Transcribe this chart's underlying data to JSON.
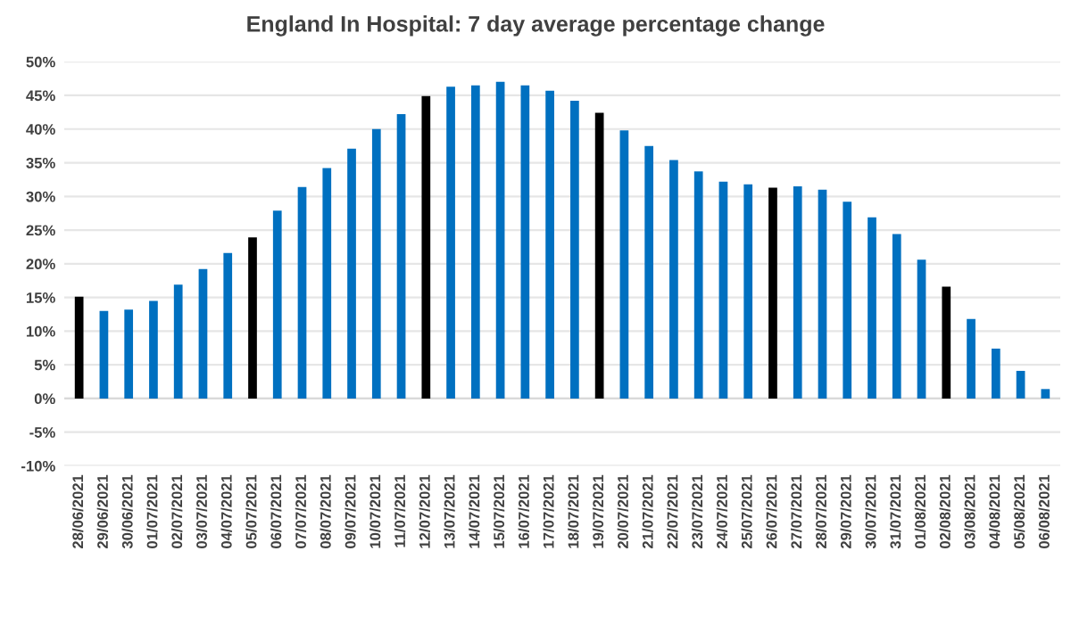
{
  "chart_data": {
    "type": "bar",
    "title": "England In Hospital: 7 day average percentage change",
    "categories": [
      "28/06/2021",
      "29/06/2021",
      "30/06/2021",
      "01/07/2021",
      "02/07/2021",
      "03/07/2021",
      "04/07/2021",
      "05/07/2021",
      "06/07/2021",
      "07/07/2021",
      "08/07/2021",
      "09/07/2021",
      "10/07/2021",
      "11/07/2021",
      "12/07/2021",
      "13/07/2021",
      "14/07/2021",
      "15/07/2021",
      "16/07/2021",
      "17/07/2021",
      "18/07/2021",
      "19/07/2021",
      "20/07/2021",
      "21/07/2021",
      "22/07/2021",
      "23/07/2021",
      "24/07/2021",
      "25/07/2021",
      "26/07/2021",
      "27/07/2021",
      "28/07/2021",
      "29/07/2021",
      "30/07/2021",
      "31/07/2021",
      "01/08/2021",
      "02/08/2021",
      "03/08/2021",
      "04/08/2021",
      "05/08/2021",
      "06/08/2021"
    ],
    "values": [
      15.1,
      13.0,
      13.2,
      14.5,
      16.9,
      19.2,
      21.6,
      23.9,
      27.9,
      31.4,
      34.2,
      37.1,
      40.0,
      42.2,
      44.9,
      46.3,
      46.5,
      47.0,
      46.5,
      45.7,
      44.2,
      42.4,
      39.8,
      37.5,
      35.4,
      33.7,
      32.2,
      31.8,
      31.3,
      31.5,
      31.0,
      29.2,
      26.9,
      24.4,
      20.6,
      16.6,
      11.8,
      7.4,
      4.1,
      1.4
    ],
    "colors": [
      "#000000",
      "#0070c0",
      "#0070c0",
      "#0070c0",
      "#0070c0",
      "#0070c0",
      "#0070c0",
      "#000000",
      "#0070c0",
      "#0070c0",
      "#0070c0",
      "#0070c0",
      "#0070c0",
      "#0070c0",
      "#000000",
      "#0070c0",
      "#0070c0",
      "#0070c0",
      "#0070c0",
      "#0070c0",
      "#0070c0",
      "#000000",
      "#0070c0",
      "#0070c0",
      "#0070c0",
      "#0070c0",
      "#0070c0",
      "#0070c0",
      "#000000",
      "#0070c0",
      "#0070c0",
      "#0070c0",
      "#0070c0",
      "#0070c0",
      "#0070c0",
      "#000000",
      "#0070c0",
      "#0070c0",
      "#0070c0",
      "#0070c0"
    ],
    "ylim": [
      -10,
      50
    ],
    "yticks": [
      {
        "value": -10,
        "label": "-10%"
      },
      {
        "value": -5,
        "label": "-5%"
      },
      {
        "value": 0,
        "label": "0%"
      },
      {
        "value": 5,
        "label": "5%"
      },
      {
        "value": 10,
        "label": "10%"
      },
      {
        "value": 15,
        "label": "15%"
      },
      {
        "value": 20,
        "label": "20%"
      },
      {
        "value": 25,
        "label": "25%"
      },
      {
        "value": 30,
        "label": "30%"
      },
      {
        "value": 35,
        "label": "35%"
      },
      {
        "value": 40,
        "label": "40%"
      },
      {
        "value": 45,
        "label": "45%"
      },
      {
        "value": 50,
        "label": "50%"
      }
    ],
    "grid": "y"
  }
}
